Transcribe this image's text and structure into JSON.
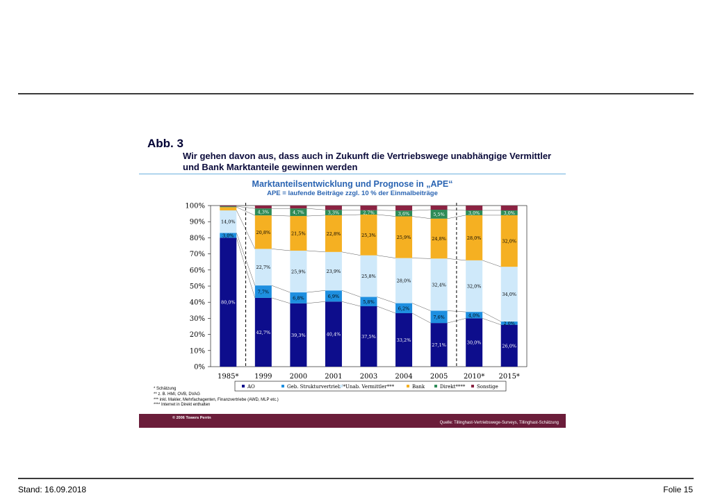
{
  "header": {
    "abb_label": "Abb. 3",
    "headline": "Wir gehen davon aus, dass auch in Zukunft die Vertriebswege unabhängige Vermittler und Bank Marktanteile gewinnen werden"
  },
  "chart_data": {
    "type": "bar",
    "stacked": true,
    "title": "Marktanteilsentwicklung und Prognose in „APE“",
    "subtitle": "APE = laufende Beiträge zzgl. 10 % der Einmalbeiträge",
    "categories": [
      "1985*",
      "1999",
      "2000",
      "2001",
      "2003",
      "2004",
      "2005",
      "2010*",
      "2015*"
    ],
    "yticks": [
      "0%",
      "10%",
      "20%",
      "30%",
      "40%",
      "50%",
      "60%",
      "70%",
      "80%",
      "90%",
      "100%"
    ],
    "ylim": [
      0,
      100
    ],
    "legend_position": "bottom",
    "series": [
      {
        "name": "AO",
        "color": "#0d0d8c",
        "values": [
          80.0,
          42.7,
          39.3,
          40.4,
          37.5,
          33.2,
          27.1,
          30.0,
          26.0
        ],
        "labels": [
          "80,0%",
          "42,7%",
          "39,3%",
          "40,4%",
          "37,5%",
          "33,2%",
          "27,1%",
          "30,0%",
          "26,0%"
        ]
      },
      {
        "name": "Geb. Strukturvertrieb**",
        "color": "#1e8fe0",
        "values": [
          3.0,
          7.7,
          6.8,
          6.9,
          5.8,
          6.2,
          7.6,
          4.0,
          2.0
        ],
        "labels": [
          "3,0%",
          "7,7%",
          "6,8%",
          "6,9%",
          "5,8%",
          "6,2%",
          "7,6%",
          "4,0%",
          "2,0%"
        ]
      },
      {
        "name": "Unab. Vermittler***",
        "color": "#cfe9fa",
        "values": [
          14.0,
          22.7,
          25.9,
          23.9,
          25.8,
          28.0,
          32.4,
          32.0,
          34.0
        ],
        "labels": [
          "14,0%",
          "22,7%",
          "25,9%",
          "23,9%",
          "25,8%",
          "28,0%",
          "32,4%",
          "32,0%",
          "34,0%"
        ]
      },
      {
        "name": "Bank",
        "color": "#f5b022",
        "values": [
          2.0,
          20.8,
          21.5,
          22.8,
          25.3,
          25.9,
          24.8,
          28.0,
          32.0
        ],
        "labels": [
          "",
          "20,8%",
          "21,5%",
          "22,8%",
          "25,3%",
          "25,9%",
          "24,8%",
          "28,0%",
          "32,0%"
        ]
      },
      {
        "name": "Direkt****",
        "color": "#2e8b57",
        "values": [
          0.5,
          4.3,
          4.7,
          3.3,
          2.7,
          3.6,
          5.5,
          3.0,
          3.0
        ],
        "labels": [
          "",
          "4,3%",
          "4,7%",
          "3,3%",
          "2,7%",
          "3,6%",
          "5,5%",
          "3,0%",
          "3,0%"
        ]
      },
      {
        "name": "Sonstige",
        "color": "#8a2342",
        "values": [
          0.5,
          1.8,
          1.8,
          2.7,
          2.9,
          3.1,
          2.6,
          3.0,
          3.0
        ],
        "labels": [
          "",
          "",
          "",
          "",
          "",
          "",
          "",
          "",
          ""
        ]
      }
    ]
  },
  "notes": [
    "* Schätzung",
    "** z. B. HMI, OVB, DVAG",
    "*** inkl. Makler, Mehrfachagenten, Finanzvertriebe (AWD, MLP etc.)",
    "**** Internet in Direkt enthalten"
  ],
  "banner": {
    "copyright": "© 2006 Towers Perrin",
    "source": "Quelle: Tillinghast-Vertriebswege-Surveys, Tillinghast-Schätzung"
  },
  "footer": {
    "stand": "Stand: 16.09.2018",
    "folie": "Folie 15"
  }
}
